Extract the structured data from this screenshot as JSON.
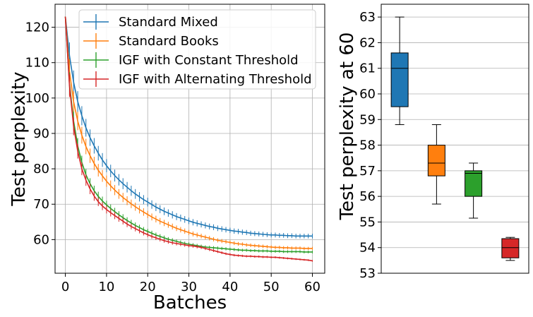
{
  "chart_data": [
    {
      "type": "line",
      "title": "",
      "xlabel": "Batches",
      "ylabel": "Test perplexity",
      "xlim": [
        -2.5,
        63
      ],
      "ylim": [
        50.5,
        126.5
      ],
      "xticks": [
        0,
        10,
        20,
        30,
        40,
        50,
        60
      ],
      "yticks": [
        60,
        70,
        80,
        90,
        100,
        110,
        120
      ],
      "grid": true,
      "legend_position": "top-right",
      "error_bars": true,
      "x": [
        0,
        1,
        2,
        3,
        4,
        5,
        6,
        7,
        8,
        9,
        10,
        11,
        12,
        13,
        14,
        15,
        16,
        17,
        18,
        19,
        20,
        21,
        22,
        23,
        24,
        25,
        26,
        27,
        28,
        29,
        30,
        31,
        32,
        33,
        34,
        35,
        36,
        37,
        38,
        39,
        40,
        41,
        42,
        43,
        44,
        45,
        46,
        47,
        48,
        49,
        50,
        51,
        52,
        53,
        54,
        55,
        56,
        57,
        58,
        59,
        60
      ],
      "series": [
        {
          "name": "Standard Mixed",
          "color": "#1f77b4",
          "values": [
            123.0,
            112.0,
            104.5,
            99.0,
            95.0,
            91.6,
            88.8,
            86.5,
            84.4,
            82.5,
            80.9,
            79.4,
            78.1,
            76.9,
            75.8,
            74.8,
            73.8,
            72.9,
            72.1,
            71.3,
            70.6,
            69.9,
            69.2,
            68.6,
            68.0,
            67.5,
            67.0,
            66.5,
            66.1,
            65.7,
            65.3,
            64.9,
            64.6,
            64.3,
            64.0,
            63.7,
            63.5,
            63.2,
            63.0,
            62.8,
            62.6,
            62.4,
            62.3,
            62.1,
            62.0,
            61.8,
            61.7,
            61.6,
            61.5,
            61.4,
            61.3,
            61.3,
            61.2,
            61.2,
            61.1,
            61.1,
            61.0,
            61.0,
            61.0,
            61.0,
            61.0
          ]
        },
        {
          "name": "Standard Books",
          "color": "#ff7f0e",
          "values": [
            123.0,
            107.5,
            99.0,
            93.5,
            89.5,
            86.3,
            83.7,
            81.5,
            79.6,
            78.0,
            76.5,
            75.2,
            74.0,
            72.9,
            71.9,
            71.0,
            70.1,
            69.3,
            68.5,
            67.8,
            67.1,
            66.4,
            65.8,
            65.2,
            64.7,
            64.2,
            63.7,
            63.2,
            62.8,
            62.4,
            62.0,
            61.6,
            61.3,
            61.0,
            60.7,
            60.4,
            60.1,
            59.8,
            59.6,
            59.4,
            59.2,
            59.0,
            58.8,
            58.7,
            58.5,
            58.4,
            58.3,
            58.2,
            58.1,
            58.0,
            57.9,
            57.8,
            57.8,
            57.7,
            57.7,
            57.6,
            57.6,
            57.6,
            57.5,
            57.5,
            57.5
          ]
        },
        {
          "name": "IGF with Constant Threshold",
          "color": "#2ca02c",
          "values": [
            123.0,
            104.0,
            93.5,
            86.5,
            81.8,
            78.3,
            75.8,
            73.8,
            72.2,
            70.9,
            69.8,
            68.8,
            67.9,
            67.0,
            66.2,
            65.4,
            64.7,
            64.0,
            63.4,
            62.8,
            62.3,
            61.8,
            61.3,
            60.9,
            60.5,
            60.1,
            59.8,
            59.5,
            59.2,
            58.9,
            58.7,
            58.5,
            58.3,
            58.1,
            57.9,
            57.8,
            57.7,
            57.6,
            57.5,
            57.4,
            57.3,
            57.2,
            57.1,
            57.0,
            57.0,
            56.9,
            56.9,
            56.8,
            56.8,
            56.8,
            56.7,
            56.7,
            56.7,
            56.6,
            56.6,
            56.6,
            56.6,
            56.6,
            56.5,
            56.5,
            56.5
          ]
        },
        {
          "name": "IGF with Alternating Threshold",
          "color": "#d62728",
          "values": [
            123.0,
            103.5,
            92.0,
            85.0,
            80.0,
            76.8,
            74.3,
            72.3,
            70.7,
            69.5,
            68.5,
            67.6,
            66.8,
            66.0,
            65.2,
            64.4,
            63.7,
            63.1,
            62.5,
            61.9,
            61.4,
            60.9,
            60.5,
            60.1,
            59.7,
            59.4,
            59.1,
            58.9,
            58.7,
            58.5,
            58.3,
            58.2,
            58.0,
            57.8,
            57.5,
            57.2,
            56.9,
            56.6,
            56.3,
            56.0,
            55.8,
            55.6,
            55.5,
            55.4,
            55.3,
            55.3,
            55.2,
            55.2,
            55.1,
            55.1,
            55.0,
            55.0,
            54.9,
            54.8,
            54.7,
            54.6,
            54.5,
            54.4,
            54.3,
            54.2,
            54.0
          ]
        }
      ]
    },
    {
      "type": "box",
      "title": "",
      "xlabel": "",
      "ylabel": "Test perplexity at 60",
      "ylim": [
        53,
        63.5
      ],
      "yticks": [
        53,
        54,
        55,
        56,
        57,
        58,
        59,
        60,
        61,
        62,
        63
      ],
      "grid": "horizontal",
      "boxes": [
        {
          "color": "#1f77b4",
          "whisker_low": 58.8,
          "q1": 59.5,
          "median": 61.0,
          "q3": 61.6,
          "whisker_high": 63.0
        },
        {
          "color": "#ff7f0e",
          "whisker_low": 55.7,
          "q1": 56.8,
          "median": 57.3,
          "q3": 58.0,
          "whisker_high": 58.8
        },
        {
          "color": "#2ca02c",
          "whisker_low": 55.15,
          "q1": 56.0,
          "median": 56.9,
          "q3": 57.0,
          "whisker_high": 57.3
        },
        {
          "color": "#d62728",
          "whisker_low": 53.5,
          "q1": 53.6,
          "median": 54.0,
          "q3": 54.35,
          "whisker_high": 54.4
        }
      ]
    }
  ]
}
